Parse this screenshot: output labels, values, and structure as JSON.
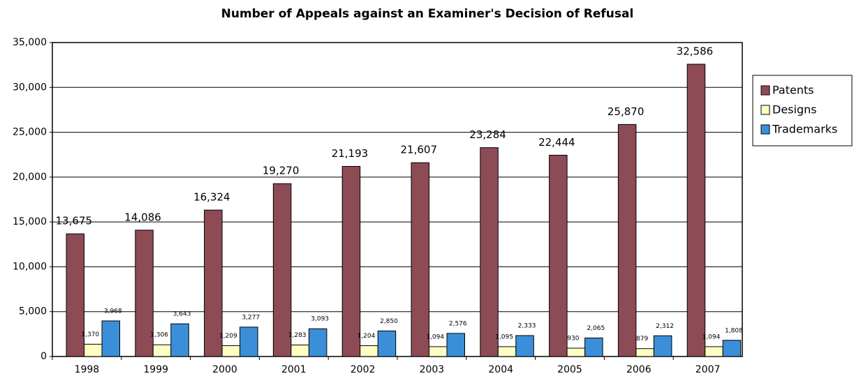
{
  "chart_data": {
    "type": "bar",
    "title": "Number of Appeals against an Examiner's Decision of Refusal",
    "categories": [
      "1998",
      "1999",
      "2000",
      "2001",
      "2002",
      "2003",
      "2004",
      "2005",
      "2006",
      "2007"
    ],
    "series": [
      {
        "name": "Patents",
        "color": "#8c4b55",
        "values": [
          13675,
          14086,
          16324,
          19270,
          21193,
          21607,
          23284,
          22444,
          25870,
          32586
        ],
        "value_labels": [
          "13,675",
          "14,086",
          "16,324",
          "19,270",
          "21,193",
          "21,607",
          "23,284",
          "22,444",
          "25,870",
          "32,586"
        ]
      },
      {
        "name": "Designs",
        "color": "#ffffc4",
        "values": [
          1370,
          1306,
          1209,
          1283,
          1204,
          1094,
          1095,
          930,
          879,
          1094
        ],
        "value_labels": [
          "1,370",
          "1,306",
          "1,209",
          "1,283",
          "1,204",
          "1,094",
          "1,095",
          "930",
          "879",
          "1,094"
        ]
      },
      {
        "name": "Trademarks",
        "color": "#3b8fd8",
        "values": [
          3968,
          3643,
          3277,
          3093,
          2850,
          2576,
          2333,
          2065,
          2312,
          1808
        ],
        "value_labels": [
          "3,968",
          "3,643",
          "3,277",
          "3,093",
          "2,850",
          "2,576",
          "2,333",
          "2,065",
          "2,312",
          "1,808"
        ]
      }
    ],
    "ylim": [
      0,
      35000
    ],
    "yticks": [
      0,
      {
        "value": 5000,
        "label": "5,000"
      },
      {
        "value": 10000,
        "label": "10,000"
      },
      {
        "value": 15000,
        "label": "15,000"
      },
      {
        "value": 20000,
        "label": "20,000"
      },
      {
        "value": 25000,
        "label": "25,000"
      },
      {
        "value": 30000,
        "label": "30,000"
      },
      {
        "value": 35000,
        "label": "35,000"
      }
    ],
    "grid": true,
    "legend": "right"
  }
}
